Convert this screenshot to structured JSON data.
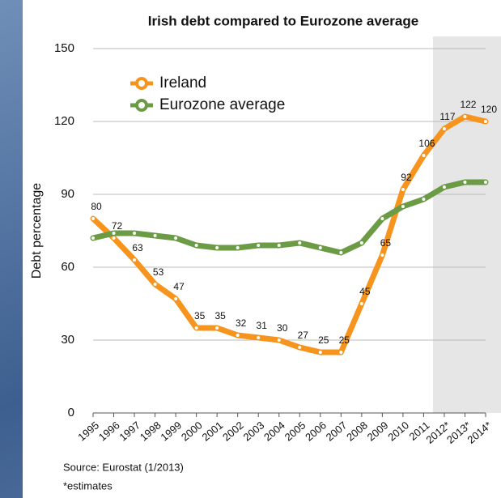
{
  "chart_data": {
    "type": "line",
    "title": "Irish debt compared to Eurozone average",
    "y_label": "Debt percentage",
    "categories": [
      "1995",
      "1996",
      "1997",
      "1998",
      "1999",
      "2000",
      "2001",
      "2002",
      "2003",
      "2004",
      "2005",
      "2006",
      "2007",
      "2008",
      "2009",
      "2010",
      "2011",
      "2012*",
      "2013*",
      "2014*"
    ],
    "series": [
      {
        "name": "Ireland",
        "color": "#f7941d",
        "values": [
          80,
          72,
          63,
          53,
          47,
          35,
          35,
          32,
          31,
          30,
          27,
          25,
          25,
          45,
          65,
          92,
          106,
          117,
          122,
          120
        ],
        "data_labels": true
      },
      {
        "name": "Eurozone average",
        "color": "#6b9b45",
        "values": [
          72,
          74,
          74,
          73,
          72,
          69,
          68,
          68,
          69,
          69,
          70,
          68,
          66,
          70,
          80,
          85,
          88,
          93,
          95,
          95
        ],
        "data_labels": false
      }
    ],
    "ylim": [
      0,
      150
    ],
    "yticks": [
      0,
      30,
      60,
      90,
      120,
      150
    ],
    "grid": true,
    "legend": "top-left",
    "notes": [
      "Source: Eurostat (1/2013)",
      "*estimates"
    ]
  }
}
